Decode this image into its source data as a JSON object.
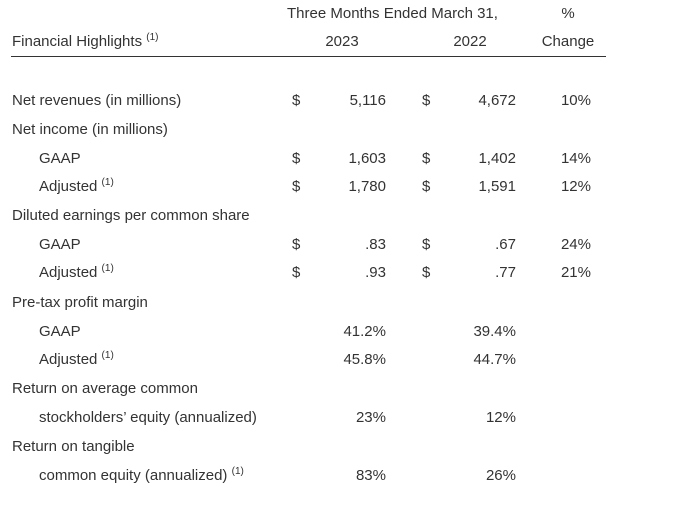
{
  "header": {
    "period_title": "Three Months Ended March 31,",
    "pct_top": "%",
    "table_title": "Financial Highlights",
    "footnote_marker": "(1)",
    "year_current": "2023",
    "year_prior": "2022",
    "pct_bottom": "Change"
  },
  "rows": [
    {
      "label": "Net revenues (in millions)",
      "indent": false,
      "sup": "",
      "d1": "$",
      "v1": "5,116",
      "d2": "$",
      "v2": "4,672",
      "chg": "10%"
    },
    {
      "label": "Net income (in millions)",
      "indent": false,
      "sup": "",
      "d1": "",
      "v1": "",
      "d2": "",
      "v2": "",
      "chg": ""
    },
    {
      "label": "GAAP",
      "indent": true,
      "sup": "",
      "d1": "$",
      "v1": "1,603",
      "d2": "$",
      "v2": "1,402",
      "chg": "14%"
    },
    {
      "label": "Adjusted",
      "indent": true,
      "sup": "(1)",
      "d1": "$",
      "v1": "1,780",
      "d2": "$",
      "v2": "1,591",
      "chg": "12%"
    },
    {
      "label": "Diluted earnings per common share",
      "indent": false,
      "sup": "",
      "d1": "",
      "v1": "",
      "d2": "",
      "v2": "",
      "chg": ""
    },
    {
      "label": "GAAP",
      "indent": true,
      "sup": "",
      "d1": "$",
      "v1": ".83",
      "d2": "$",
      "v2": ".67",
      "chg": "24%"
    },
    {
      "label": "Adjusted",
      "indent": true,
      "sup": "(1)",
      "d1": "$",
      "v1": ".93",
      "d2": "$",
      "v2": ".77",
      "chg": "21%"
    },
    {
      "label": "Pre-tax profit margin",
      "indent": false,
      "sup": "",
      "d1": "",
      "v1": "",
      "d2": "",
      "v2": "",
      "chg": ""
    },
    {
      "label": "GAAP",
      "indent": true,
      "sup": "",
      "d1": "",
      "v1": "41.2%",
      "d2": "",
      "v2": "39.4%",
      "chg": ""
    },
    {
      "label": "Adjusted",
      "indent": true,
      "sup": "(1)",
      "d1": "",
      "v1": "45.8%",
      "d2": "",
      "v2": "44.7%",
      "chg": ""
    },
    {
      "label": "Return on average common",
      "indent": false,
      "sup": "",
      "d1": "",
      "v1": "",
      "d2": "",
      "v2": "",
      "chg": ""
    },
    {
      "label": "stockholders’ equity (annualized)",
      "indent": true,
      "sup": "",
      "d1": "",
      "v1": "23%",
      "d2": "",
      "v2": "12%",
      "chg": ""
    },
    {
      "label": "Return on tangible",
      "indent": false,
      "sup": "",
      "d1": "",
      "v1": "",
      "d2": "",
      "v2": "",
      "chg": ""
    },
    {
      "label": "common equity (annualized)",
      "indent": true,
      "sup": "(1)",
      "d1": "",
      "v1": "83%",
      "d2": "",
      "v2": "26%",
      "chg": ""
    }
  ]
}
